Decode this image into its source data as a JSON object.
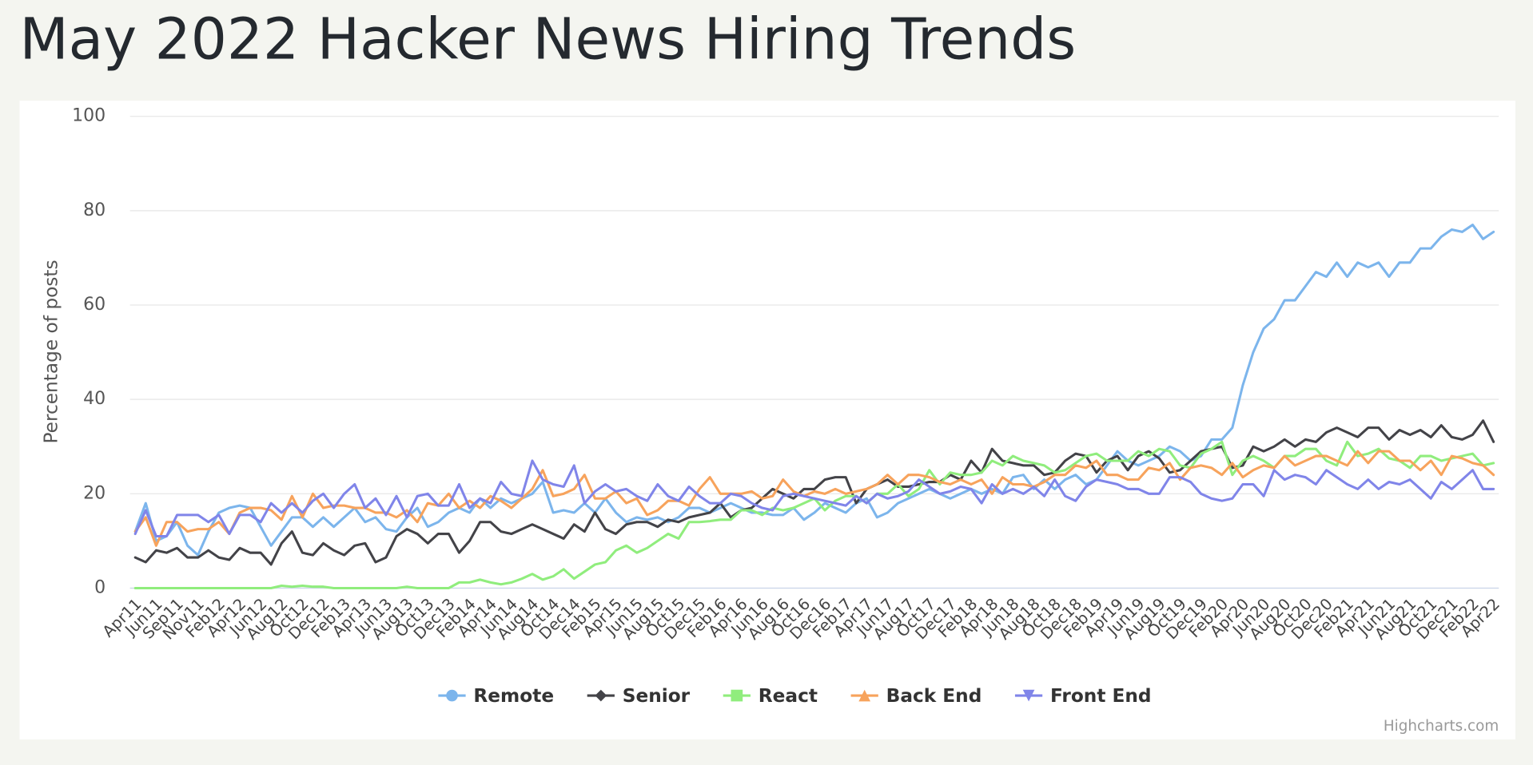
{
  "chart_data": {
    "type": "line",
    "title": "May 2022 Hacker News Hiring Trends",
    "y_label": "Percentage of posts",
    "credits": "Highcharts.com",
    "legend_position": "bottom",
    "grid": true,
    "ylim": [
      0,
      100
    ],
    "yticks": [
      0,
      20,
      40,
      60,
      80,
      100
    ],
    "categories": [
      "Apr11",
      null,
      "Jun11",
      null,
      "Sep11",
      null,
      "Nov11",
      null,
      "Feb12",
      null,
      "Apr12",
      null,
      "Jun12",
      null,
      "Aug12",
      null,
      "Oct12",
      null,
      "Dec12",
      null,
      "Feb13",
      null,
      "Apr13",
      null,
      "Jun13",
      null,
      "Aug13",
      null,
      "Oct13",
      null,
      "Dec13",
      null,
      "Feb14",
      null,
      "Apr14",
      null,
      "Jun14",
      null,
      "Aug14",
      null,
      "Oct14",
      null,
      "Dec14",
      null,
      "Feb15",
      null,
      "Apr15",
      null,
      "Jun15",
      null,
      "Aug15",
      null,
      "Oct15",
      null,
      "Dec15",
      null,
      "Feb16",
      null,
      "Apr16",
      null,
      "Jun16",
      null,
      "Aug16",
      null,
      "Oct16",
      null,
      "Dec16",
      null,
      "Feb17",
      null,
      "Apr17",
      null,
      "Jun17",
      null,
      "Aug17",
      null,
      "Oct17",
      null,
      "Dec17",
      null,
      "Feb18",
      null,
      "Apr18",
      null,
      "Jun18",
      null,
      "Aug18",
      null,
      "Oct18",
      null,
      "Dec18",
      null,
      "Feb19",
      null,
      "Apr19",
      null,
      "Jun19",
      null,
      "Aug19",
      null,
      "Oct19",
      null,
      "Dec19",
      null,
      "Feb20",
      null,
      "Apr20",
      null,
      "Jun20",
      null,
      "Aug20",
      null,
      "Oct20",
      null,
      "Dec20",
      null,
      "Feb21",
      null,
      "Apr21",
      null,
      "Jun21",
      null,
      "Aug21",
      null,
      "Oct21",
      null,
      "Dec21",
      null,
      "Feb22",
      null,
      "Apr22"
    ],
    "series": [
      {
        "name": "Remote",
        "color": "#7cb5ec",
        "marker": "circle",
        "values": [
          12,
          18,
          10,
          11,
          14,
          9,
          7,
          12,
          16,
          17,
          17.5,
          17,
          13,
          9,
          12,
          15,
          15,
          13,
          15,
          13,
          15,
          17,
          14,
          15,
          12.5,
          12,
          15,
          17,
          13,
          14,
          16,
          17,
          16,
          19,
          17,
          19,
          18,
          19,
          20,
          22.5,
          16,
          16.5,
          16,
          18,
          16,
          19,
          16,
          14,
          15,
          14.5,
          15,
          14,
          15,
          17,
          17,
          16,
          17,
          18,
          17,
          16,
          16,
          15.5,
          15.5,
          17,
          14.5,
          16,
          18,
          17,
          16,
          18,
          19,
          15,
          16,
          18,
          19,
          20,
          21,
          20,
          19,
          20,
          21,
          20,
          21,
          20,
          23.5,
          24,
          21,
          23,
          21,
          23,
          24,
          22,
          23,
          26,
          29,
          27,
          26,
          27,
          28,
          30,
          29,
          27,
          28,
          31.5,
          31.5,
          34,
          43,
          50,
          55,
          57,
          61,
          61,
          64,
          67,
          66,
          69,
          66,
          69,
          68,
          69,
          66,
          69,
          69,
          72,
          72,
          74.5,
          76,
          75.5,
          77,
          74,
          75.5
        ]
      },
      {
        "name": "Senior",
        "color": "#434348",
        "marker": "diamond",
        "values": [
          6.5,
          5.5,
          8,
          7.5,
          8.5,
          6.5,
          6.5,
          8,
          6.5,
          6,
          8.5,
          7.5,
          7.5,
          5,
          9.5,
          12,
          7.5,
          7,
          9.5,
          8,
          7,
          9,
          9.5,
          5.5,
          6.5,
          11,
          12.5,
          11.5,
          9.5,
          11.5,
          11.5,
          7.5,
          10,
          14,
          14,
          12,
          11.5,
          12.5,
          13.5,
          12.5,
          11.5,
          10.5,
          13.5,
          12,
          16,
          12.5,
          11.5,
          13.5,
          14,
          14,
          13,
          14.5,
          14,
          15,
          15.5,
          16,
          18,
          15,
          16.5,
          17,
          19,
          21,
          20,
          19,
          21,
          21,
          23,
          23.5,
          23.5,
          18,
          21,
          22,
          23,
          21.5,
          21.5,
          22,
          22.5,
          22.5,
          24,
          23,
          27,
          24.5,
          29.5,
          27,
          26.5,
          26,
          26,
          24,
          24.5,
          27,
          28.5,
          28,
          24.5,
          27,
          28,
          25,
          28,
          29,
          27.5,
          24.5,
          25,
          27,
          29,
          29.5,
          30,
          25.5,
          26,
          30,
          29,
          30,
          31.5,
          30,
          31.5,
          31,
          33,
          34,
          33,
          32,
          34,
          34,
          31.5,
          33.5,
          32.5,
          33.5,
          32,
          34.5,
          32,
          31.5,
          32.5,
          35.5,
          31
        ]
      },
      {
        "name": "React",
        "color": "#90ed7d",
        "marker": "square",
        "values": [
          0,
          0,
          0,
          0,
          0,
          0,
          0,
          0,
          0,
          0,
          0,
          0,
          0,
          0,
          0.5,
          0.3,
          0.5,
          0.3,
          0.3,
          0,
          0,
          0,
          0,
          0,
          0,
          0,
          0.3,
          0,
          0,
          0,
          0,
          1.2,
          1.2,
          1.8,
          1.2,
          0.8,
          1.2,
          2,
          3,
          1.8,
          2.5,
          4,
          2,
          3.5,
          5,
          5.5,
          8,
          9,
          7.5,
          8.5,
          10,
          11.5,
          10.5,
          14,
          14,
          14.2,
          14.5,
          14.5,
          16.5,
          16.5,
          15.5,
          17,
          16.5,
          17,
          18,
          19,
          16.5,
          18.5,
          19.5,
          19.5,
          18,
          20,
          20,
          22,
          19.5,
          21,
          25,
          22,
          24.5,
          24,
          24,
          24.5,
          27,
          26,
          28,
          27,
          26.5,
          26,
          24.5,
          25,
          26.5,
          28,
          28.5,
          27,
          27,
          27,
          29,
          28,
          29.5,
          29,
          26,
          25.5,
          28.5,
          29.5,
          31,
          24,
          27,
          28,
          27,
          25.5,
          28,
          28,
          29.5,
          29.5,
          27,
          26,
          31,
          28,
          28.5,
          29.5,
          27.5,
          27,
          25.5,
          28,
          28,
          27,
          27.5,
          28,
          28.5,
          26,
          26.5
        ]
      },
      {
        "name": "Back End",
        "color": "#f7a35c",
        "marker": "triangle",
        "values": [
          12,
          15,
          9,
          14,
          14,
          12,
          12.5,
          12.5,
          14,
          11.5,
          16,
          17,
          17,
          16.5,
          14.5,
          19.5,
          15,
          20,
          17,
          17.5,
          17.5,
          17,
          17,
          16,
          16,
          15,
          16.5,
          14,
          18,
          17.5,
          20,
          17,
          18.5,
          17,
          19.5,
          18.5,
          17,
          19,
          21,
          25,
          19.5,
          20,
          21,
          24,
          19,
          19,
          20.5,
          18,
          19,
          15.5,
          16.5,
          18.5,
          18.5,
          17.5,
          21,
          23.5,
          20,
          20,
          20,
          20.5,
          19,
          19.5,
          23,
          20.5,
          19.5,
          20.5,
          20,
          21,
          20,
          20.5,
          21,
          22,
          24,
          22,
          24,
          24,
          23.5,
          22.5,
          22,
          23,
          22,
          23,
          20,
          23.5,
          22,
          22,
          21.5,
          22.5,
          24,
          24,
          26,
          25.5,
          27,
          24,
          24,
          23,
          23,
          25.5,
          25,
          26.5,
          23,
          25.5,
          26,
          25.5,
          24,
          26.5,
          23.5,
          25,
          26,
          25.5,
          28,
          26,
          27,
          28,
          28,
          27,
          26,
          29,
          26.5,
          29,
          29,
          27,
          27,
          25,
          27,
          24,
          28,
          27.5,
          26.5,
          26,
          24
        ]
      },
      {
        "name": "Front End",
        "color": "#8085e9",
        "marker": "triangle-down",
        "values": [
          11.5,
          16.5,
          11,
          11,
          15.5,
          15.5,
          15.5,
          14,
          15.5,
          11.5,
          15.5,
          15.5,
          14,
          18,
          16,
          18,
          16,
          18.5,
          20,
          17,
          20,
          22,
          17,
          19,
          15.5,
          19.5,
          15,
          19.5,
          20,
          17.5,
          17.5,
          22,
          17,
          19,
          18,
          22.5,
          20,
          19.5,
          27,
          23,
          22,
          21.5,
          26,
          18,
          20.5,
          22,
          20.5,
          21,
          19.5,
          18.5,
          22,
          19.5,
          18.5,
          21.5,
          19.5,
          18,
          18,
          20,
          19.5,
          18,
          17,
          16.5,
          19.5,
          20,
          19.5,
          19,
          18.5,
          18,
          17.5,
          19.5,
          18,
          20,
          19,
          19.5,
          20.5,
          23,
          21.5,
          20,
          20.5,
          21.5,
          21,
          18,
          22,
          20,
          21,
          20,
          21.5,
          19.5,
          23,
          19.5,
          18.5,
          21.5,
          23,
          22.5,
          22,
          21,
          21,
          20,
          20,
          23.5,
          23.5,
          22.5,
          20,
          19,
          18.5,
          19,
          22,
          22,
          19.5,
          25,
          23,
          24,
          23.5,
          22,
          25,
          23.5,
          22,
          21,
          23,
          21,
          22.5,
          22,
          23,
          21,
          19,
          22.5,
          21,
          23,
          25,
          21,
          21
        ]
      }
    ]
  }
}
